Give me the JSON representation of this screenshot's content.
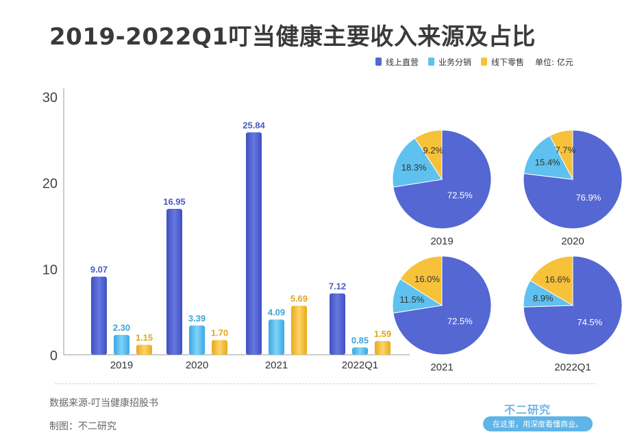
{
  "title": "2019-2022Q1叮当健康主要收入来源及占比",
  "legend": {
    "items": [
      {
        "label": "线上直营",
        "color": "#5467d3"
      },
      {
        "label": "业务分销",
        "color": "#5ec1ef"
      },
      {
        "label": "线下零售",
        "color": "#f7c13a"
      }
    ],
    "unit": "单位: 亿元"
  },
  "chart_data": [
    {
      "type": "bar",
      "categories": [
        "2019",
        "2020",
        "2021",
        "2022Q1"
      ],
      "series": [
        {
          "name": "线上直营",
          "values": [
            9.07,
            16.95,
            25.84,
            7.12
          ],
          "label_color": "#4a5bc4"
        },
        {
          "name": "业务分销",
          "values": [
            2.3,
            3.39,
            4.09,
            0.85
          ],
          "label_color": "#3aa3d9"
        },
        {
          "name": "线下零售",
          "values": [
            1.15,
            1.7,
            5.69,
            1.59
          ],
          "label_color": "#e0a51e"
        }
      ],
      "value_labels": [
        [
          "9.07",
          "16.95",
          "25.84",
          "7.12"
        ],
        [
          "2.30",
          "3.39",
          "4.09",
          "0.85"
        ],
        [
          "1.15",
          "1.70",
          "5.69",
          "1.59"
        ]
      ],
      "ylim": [
        0,
        30
      ],
      "yticks": [
        0,
        10,
        20,
        30
      ],
      "xlabel": "",
      "ylabel": ""
    },
    {
      "type": "pie",
      "pies": [
        {
          "label": "2019",
          "slices": [
            {
              "name": "线上直营",
              "value": 72.5,
              "text": "72.5%"
            },
            {
              "name": "业务分销",
              "value": 18.3,
              "text": "18.3%"
            },
            {
              "name": "线下零售",
              "value": 9.2,
              "text": "9.2%"
            }
          ]
        },
        {
          "label": "2020",
          "slices": [
            {
              "name": "线上直营",
              "value": 76.9,
              "text": "76.9%"
            },
            {
              "name": "业务分销",
              "value": 15.4,
              "text": "15.4%"
            },
            {
              "name": "线下零售",
              "value": 7.7,
              "text": "7.7%"
            }
          ]
        },
        {
          "label": "2021",
          "slices": [
            {
              "name": "线上直营",
              "value": 72.5,
              "text": "72.5%"
            },
            {
              "name": "业务分销",
              "value": 11.5,
              "text": "11.5%"
            },
            {
              "name": "线下零售",
              "value": 16.0,
              "text": "16.0%"
            }
          ]
        },
        {
          "label": "2022Q1",
          "slices": [
            {
              "name": "线上直营",
              "value": 74.5,
              "text": "74.5%"
            },
            {
              "name": "业务分销",
              "value": 8.9,
              "text": "8.9%"
            },
            {
              "name": "线下零售",
              "value": 16.6,
              "text": "16.6%"
            }
          ]
        }
      ]
    }
  ],
  "footer": {
    "source": "数据来源-叮当健康招股书",
    "maker": "制图：不二研究",
    "brand": "不二研究",
    "slogan": "在这里，用深度看懂商业。"
  }
}
